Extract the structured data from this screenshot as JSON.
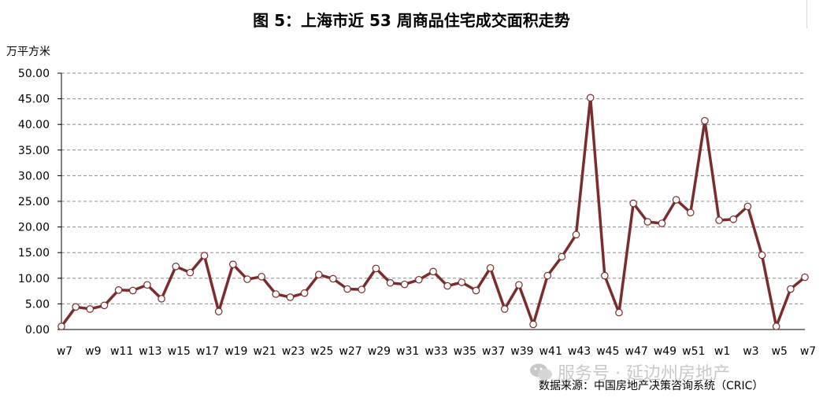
{
  "title": "图 5：上海市近 53 周商品住宅成交面积走势",
  "unit_label": "万平方米",
  "source": "数据来源：中国房地产决策咨询系统（CRIC）",
  "watermark": "服务号 · 延边州房地产",
  "colors": {
    "line": "#7b2c2c",
    "marker_fill": "#ffffff",
    "grid": "#8c8c8c",
    "axis": "#000000"
  },
  "chart_data": {
    "type": "line",
    "title": "图 5：上海市近 53 周商品住宅成交面积走势",
    "ylabel": "万平方米",
    "xlabel": "",
    "ylim": [
      0,
      50
    ],
    "y_ticks": [
      "0.00",
      "5.00",
      "10.00",
      "15.00",
      "20.00",
      "25.00",
      "30.00",
      "35.00",
      "40.00",
      "45.00",
      "50.00"
    ],
    "grid": true,
    "grid_style": "dashed",
    "x_tick_labels": [
      "w7",
      "w9",
      "w11",
      "w13",
      "w15",
      "w17",
      "w19",
      "w21",
      "w23",
      "w25",
      "w27",
      "w29",
      "w31",
      "w33",
      "w35",
      "w37",
      "w39",
      "w41",
      "w43",
      "w45",
      "w47",
      "w49",
      "w51",
      "w1",
      "w3",
      "w5",
      "w7"
    ],
    "x": [
      "w7",
      "w8",
      "w9",
      "w10",
      "w11",
      "w12",
      "w13",
      "w14",
      "w15",
      "w16",
      "w17",
      "w18",
      "w19",
      "w20",
      "w21",
      "w22",
      "w23",
      "w24",
      "w25",
      "w26",
      "w27",
      "w28",
      "w29",
      "w30",
      "w31",
      "w32",
      "w33",
      "w34",
      "w35",
      "w36",
      "w37",
      "w38",
      "w39",
      "w40",
      "w41",
      "w42",
      "w43",
      "w44",
      "w45",
      "w46",
      "w47",
      "w48",
      "w49",
      "w50",
      "w51",
      "w52",
      "w1",
      "w2",
      "w3",
      "w4",
      "w5",
      "w6",
      "w7"
    ],
    "values": [
      0.6,
      4.4,
      4.0,
      4.7,
      7.7,
      7.6,
      8.7,
      6.0,
      12.3,
      11.1,
      14.4,
      3.5,
      12.7,
      9.8,
      10.3,
      6.9,
      6.3,
      7.1,
      10.7,
      9.9,
      7.9,
      7.8,
      11.9,
      9.1,
      8.8,
      9.7,
      11.3,
      8.5,
      9.2,
      7.6,
      12.0,
      4.0,
      8.7,
      1.0,
      10.5,
      14.2,
      18.5,
      45.2,
      10.5,
      3.3,
      24.6,
      21.0,
      20.7,
      25.3,
      22.8,
      40.7,
      21.3,
      21.5,
      24.0,
      14.5,
      0.6,
      7.9,
      10.2
    ]
  }
}
